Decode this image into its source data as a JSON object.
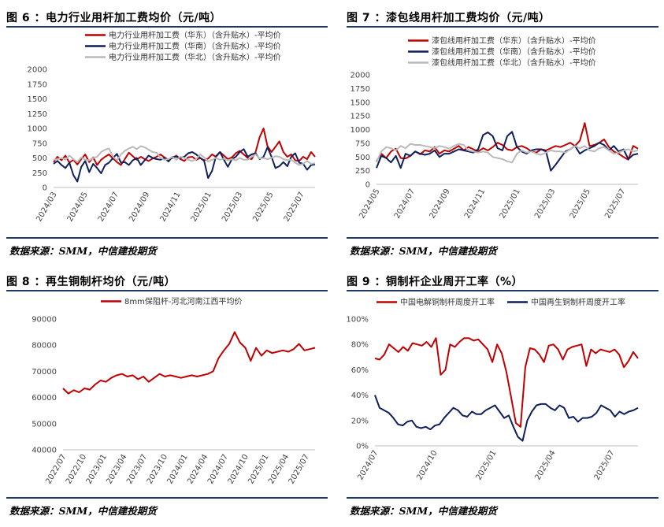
{
  "colors": {
    "red": "#c00000",
    "navy": "#0f1f5c",
    "gray": "#b9b9b9",
    "rule": "#1f3864"
  },
  "chart_data": [
    {
      "id": "fig6",
      "type": "line",
      "title": "图 6 ：电力行业用杆加工费均价（元/吨）",
      "ylim": [
        0,
        2000
      ],
      "yticks": [
        0,
        250,
        500,
        750,
        1000,
        1250,
        1500,
        1750,
        2000
      ],
      "x_range": [
        "2024-03",
        "2025-08"
      ],
      "xticks": [
        "2024/03",
        "2024/05",
        "2024/07",
        "2024/09",
        "2024/11",
        "2025/01",
        "2025/03",
        "2025/05",
        "2025/07"
      ],
      "series": [
        {
          "name": "电力行业用杆加工费（华东）（含升贴水）-平均价",
          "color": "#c00000",
          "values": [
            430,
            520,
            460,
            540,
            420,
            470,
            390,
            480,
            560,
            430,
            510,
            380,
            470,
            520,
            560,
            490,
            430,
            380,
            480,
            590,
            530,
            470,
            520,
            480,
            450,
            490,
            520,
            560,
            510,
            470,
            500,
            540,
            480,
            450,
            510,
            520,
            470,
            500,
            460,
            490,
            560,
            520,
            600,
            540,
            480,
            510,
            580,
            620,
            560,
            500,
            480,
            600,
            850,
            1000,
            700,
            600,
            690,
            780,
            600,
            520,
            560,
            460,
            450,
            520,
            480,
            600,
            520
          ]
        },
        {
          "name": "电力行业用杆加工费（华南）（含升贴水）-平均价",
          "color": "#0f1f5c",
          "values": [
            400,
            450,
            380,
            330,
            420,
            210,
            100,
            350,
            450,
            260,
            400,
            330,
            240,
            380,
            420,
            500,
            570,
            420,
            430,
            380,
            460,
            500,
            380,
            460,
            540,
            500,
            480,
            470,
            500,
            440,
            520,
            520,
            500,
            520,
            580,
            600,
            560,
            500,
            450,
            160,
            280,
            530,
            600,
            470,
            350,
            480,
            520,
            600,
            650,
            520,
            560,
            580,
            480,
            520,
            680,
            520,
            330,
            360,
            430,
            360,
            520,
            580,
            420,
            400,
            300,
            380,
            390
          ]
        },
        {
          "name": "电力行业用杆加工费（华北）（含升贴水）-平均价",
          "color": "#b9b9b9",
          "values": [
            470,
            480,
            500,
            470,
            540,
            480,
            430,
            510,
            470,
            460,
            500,
            520,
            600,
            640,
            660,
            520,
            460,
            560,
            620,
            660,
            690,
            650,
            700,
            680,
            640,
            600,
            590,
            500,
            470,
            480,
            520,
            470,
            520,
            500,
            470,
            450,
            480,
            560,
            510,
            440,
            470,
            500,
            470,
            490,
            460,
            480,
            460,
            500,
            470,
            470,
            520,
            560,
            490,
            500,
            480,
            500,
            530,
            520,
            480,
            460,
            470,
            420,
            380,
            400,
            450,
            400,
            410
          ]
        }
      ]
    },
    {
      "id": "fig7",
      "type": "line",
      "title": "图 7 ：漆包线用杆加工费均价（元/吨）",
      "ylim": [
        0,
        2000
      ],
      "yticks": [
        0,
        250,
        500,
        750,
        1000,
        1250,
        1500,
        1750,
        2000
      ],
      "x_range": [
        "2024-05",
        "2025-08"
      ],
      "xticks": [
        "2024/05",
        "2024/07",
        "2024/09",
        "2024/11",
        "2025/01",
        "2025/03",
        "2025/05",
        "2025/07"
      ],
      "series": [
        {
          "name": "漆包线用杆加工费（华东）（含升贴水）-平均价",
          "color": "#c00000",
          "values": [
            420,
            560,
            480,
            600,
            650,
            480,
            470,
            520,
            600,
            550,
            620,
            600,
            680,
            560,
            620,
            600,
            650,
            700,
            620,
            680,
            640,
            600,
            660,
            620,
            680,
            760,
            720,
            640,
            620,
            680,
            700,
            660,
            600,
            580,
            640,
            620,
            660,
            700,
            680,
            720,
            760,
            700,
            800,
            1120,
            700,
            720,
            760,
            820,
            680,
            600,
            560,
            500,
            450,
            700,
            650
          ]
        },
        {
          "name": "漆包线用杆加工费（华南）（含升贴水）-平均价",
          "color": "#0f1f5c",
          "values": [
            300,
            520,
            480,
            400,
            520,
            300,
            560,
            520,
            600,
            560,
            540,
            560,
            620,
            500,
            560,
            560,
            600,
            640,
            620,
            600,
            580,
            640,
            900,
            950,
            880,
            660,
            620,
            880,
            960,
            680,
            600,
            560,
            620,
            640,
            640,
            600,
            250,
            360,
            480,
            600,
            640,
            700,
            560,
            620,
            660,
            700,
            760,
            720,
            620,
            700,
            600,
            640,
            460,
            540,
            560
          ]
        },
        {
          "name": "漆包线用杆加工费（华北）（含升贴水）-平均价",
          "color": "#b9b9b9",
          "values": [
            400,
            600,
            680,
            660,
            620,
            700,
            660,
            740,
            720,
            720,
            700,
            680,
            660,
            700,
            680,
            650,
            700,
            740,
            720,
            620,
            600,
            580,
            600,
            580,
            500,
            480,
            460,
            420,
            400,
            560,
            620,
            580,
            600,
            560,
            540,
            580,
            620,
            600,
            600,
            580,
            640,
            700,
            660,
            700,
            620,
            600,
            660,
            680,
            620,
            560,
            580,
            620,
            640,
            600,
            620
          ]
        }
      ]
    },
    {
      "id": "fig8",
      "type": "line",
      "title": "图 8 ：再生铜制杆均价（元/吨）",
      "ylim": [
        40000,
        90000
      ],
      "yticks": [
        40000,
        50000,
        60000,
        70000,
        80000,
        90000
      ],
      "x_range": [
        "2022-07",
        "2025-08"
      ],
      "xticks": [
        "2022/07",
        "2022/10",
        "2023/01",
        "2023/04",
        "2023/07",
        "2023/10",
        "2024/01",
        "2024/04",
        "2024/07",
        "2024/10",
        "2025/01",
        "2025/04",
        "2025/07"
      ],
      "series": [
        {
          "name": "8mm保阻杆-河北河南江西平均价",
          "color": "#c00000",
          "values": [
            63500,
            61500,
            62800,
            62000,
            63500,
            63000,
            65000,
            66500,
            66000,
            67500,
            68500,
            69000,
            68000,
            68500,
            67000,
            68000,
            66000,
            67500,
            69000,
            68000,
            68500,
            68000,
            67500,
            68000,
            68500,
            68000,
            68500,
            69000,
            70000,
            75000,
            78000,
            80500,
            85000,
            81000,
            79000,
            74000,
            79000,
            76000,
            78000,
            77000,
            77500,
            78000,
            77500,
            78500,
            80500,
            78000,
            78500,
            79000
          ]
        }
      ]
    },
    {
      "id": "fig9",
      "type": "line",
      "title": "图 9 ：铜制杆企业周开工率（%）",
      "ylim": [
        0,
        100
      ],
      "yticks": [
        0,
        20,
        40,
        60,
        80,
        100
      ],
      "ytick_labels": [
        "0%",
        "20%",
        "40%",
        "60%",
        "80%",
        "100%"
      ],
      "x_range": [
        "2024-07",
        "2025-08"
      ],
      "xticks": [
        "2024/07",
        "2024/10",
        "2025/01",
        "2025/04",
        "2025/07"
      ],
      "series": [
        {
          "name": "中国电解铜制杆周度开工率",
          "color": "#c00000",
          "values": [
            69,
            68,
            72,
            80,
            77,
            74,
            78,
            75,
            81,
            80,
            79,
            82,
            78,
            85,
            56,
            60,
            80,
            78,
            82,
            85,
            85,
            83,
            84,
            80,
            76,
            66,
            80,
            73,
            58,
            38,
            18,
            15,
            62,
            77,
            76,
            72,
            66,
            79,
            80,
            76,
            68,
            76,
            78,
            79,
            80,
            63,
            76,
            73,
            76,
            75,
            74,
            76,
            72,
            62,
            67,
            74,
            69
          ]
        },
        {
          "name": "中国再生铜制杆周度开工率",
          "color": "#0f1f5c",
          "values": [
            40,
            30,
            28,
            26,
            22,
            17,
            16,
            19,
            20,
            15,
            14,
            15,
            13,
            16,
            17,
            22,
            26,
            30,
            28,
            24,
            23,
            27,
            25,
            25,
            28,
            30,
            32,
            27,
            22,
            24,
            15,
            7,
            4,
            20,
            27,
            32,
            33,
            33,
            30,
            28,
            32,
            30,
            22,
            23,
            19,
            22,
            22,
            23,
            26,
            32,
            30,
            28,
            23,
            27,
            25,
            27,
            28,
            30
          ]
        }
      ]
    }
  ],
  "sources": {
    "left_top": "数据来源：SMM，中信建投期货",
    "right_top": "数据来源：SMM，中信建投期货",
    "left_bottom": "数据来源：SMM，中信建投期货",
    "right_bottom": "数据来源：SMM，中信建投期货"
  }
}
